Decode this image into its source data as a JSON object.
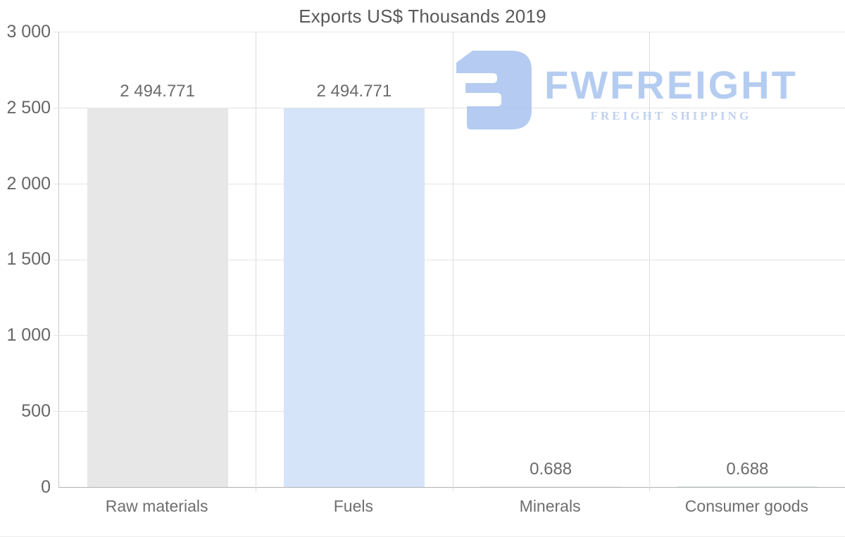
{
  "page": {
    "title": "Exports US$ Thousands 2019"
  },
  "logo": {
    "brand": "FWFREIGHT",
    "tagline": "FREIGHT SHIPPING",
    "mark_icon": "freight-logo-mark",
    "brand_color": "#a9c4ef",
    "tagline_color": "#b6caee"
  },
  "chart_data": {
    "type": "bar",
    "title": "Exports US$ Thousands 2019",
    "categories": [
      "Raw materials",
      "Fuels",
      "Minerals",
      "Consumer goods"
    ],
    "values": [
      2494.771,
      2494.771,
      0.688,
      0.688
    ],
    "value_labels": [
      "2 494.771",
      "2 494.771",
      "0.688",
      "0.688"
    ],
    "bar_colors": [
      "#e7e7e7",
      "#d5e4f8",
      "#ededed",
      "#d9e9dd"
    ],
    "xlabel": "",
    "ylabel": "",
    "ylim": [
      0,
      3000
    ],
    "ytick_values": [
      3000,
      2500,
      2000,
      1500,
      1000,
      500,
      0
    ],
    "ytick_labels": [
      "3 000",
      "2 500",
      "2 000",
      "1 500",
      "1 000",
      "500",
      "0"
    ],
    "grid": "light gray horizontal lines every 500 and vertical column separators",
    "legend": "none"
  }
}
